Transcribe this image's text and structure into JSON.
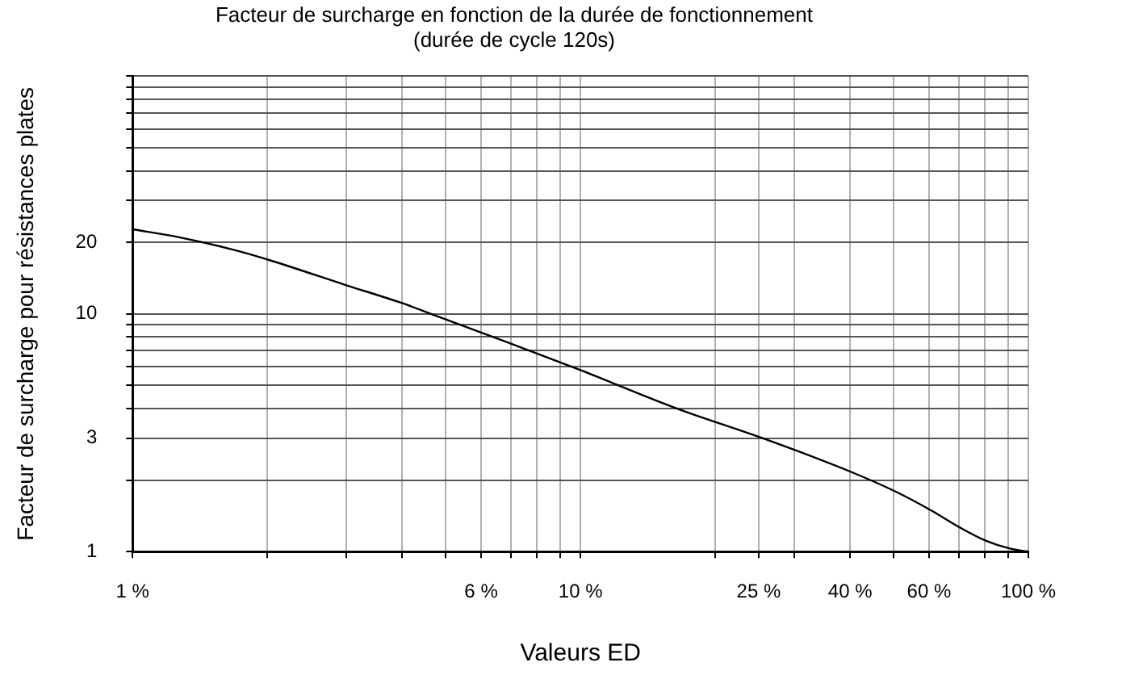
{
  "chart_data": {
    "type": "line",
    "title": "Facteur de surcharge en fonction de la durée de fonctionnement",
    "subtitle": "(durée de cycle 120s)",
    "xlabel": "Valeurs ED",
    "ylabel": "Facteur de surcharge pour résistances plates",
    "log": "xy",
    "grid": true,
    "legend": false,
    "marker": "none",
    "line_style": "solid",
    "xlim": [
      1,
      100
    ],
    "ylim": [
      1,
      100
    ],
    "xticks": [
      {
        "value": 1,
        "label": "1 %"
      },
      {
        "value": 2,
        "label": null
      },
      {
        "value": 3,
        "label": null
      },
      {
        "value": 4,
        "label": null
      },
      {
        "value": 5,
        "label": null
      },
      {
        "value": 6,
        "label": "6 %"
      },
      {
        "value": 7,
        "label": null
      },
      {
        "value": 8,
        "label": null
      },
      {
        "value": 9,
        "label": null
      },
      {
        "value": 10,
        "label": "10 %"
      },
      {
        "value": 20,
        "label": null
      },
      {
        "value": 25,
        "label": "25 %"
      },
      {
        "value": 30,
        "label": null
      },
      {
        "value": 40,
        "label": "40 %"
      },
      {
        "value": 50,
        "label": null
      },
      {
        "value": 60,
        "label": "60 %"
      },
      {
        "value": 70,
        "label": null
      },
      {
        "value": 80,
        "label": null
      },
      {
        "value": 90,
        "label": null
      },
      {
        "value": 100,
        "label": "100 %"
      }
    ],
    "yticks": [
      1,
      {
        "value": 2,
        "label": null
      },
      3,
      {
        "value": 4,
        "label": null
      },
      {
        "value": 5,
        "label": null
      },
      {
        "value": 6,
        "label": null
      },
      {
        "value": 7,
        "label": null
      },
      {
        "value": 8,
        "label": null
      },
      {
        "value": 9,
        "label": null
      },
      10,
      20,
      {
        "value": 30,
        "label": null
      },
      {
        "value": 40,
        "label": null
      },
      {
        "value": 50,
        "label": null
      },
      {
        "value": 60,
        "label": null
      },
      {
        "value": 70,
        "label": null
      },
      {
        "value": 80,
        "label": null
      },
      {
        "value": 90,
        "label": null
      },
      {
        "value": 100,
        "label": null
      }
    ],
    "series": [
      {
        "color": "#000000",
        "x": [
          1,
          1.27,
          1.68,
          2.05,
          3,
          4,
          4.95,
          6.9,
          10,
          16.4,
          25.5,
          40.3,
          50.5,
          60.7,
          70.5,
          80.5,
          91,
          100
        ],
        "values": [
          22.7,
          21,
          18.6,
          16.7,
          13.2,
          11.1,
          9.55,
          7.57,
          5.8,
          4,
          3,
          2.16,
          1.79,
          1.49,
          1.26,
          1.11,
          1.03,
          1
        ]
      }
    ]
  }
}
